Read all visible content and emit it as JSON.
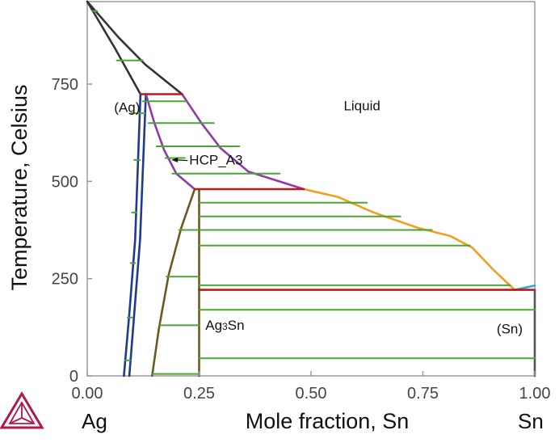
{
  "chart_data": {
    "type": "line",
    "title": "",
    "xlabel": "Mole fraction, Sn",
    "ylabel": "Temperature, Celsius",
    "xlim": [
      0,
      1
    ],
    "ylim": [
      0,
      962
    ],
    "x_ticks": [
      0,
      0.25,
      0.5,
      0.75,
      1
    ],
    "x_tick_labels": [
      "0.00",
      "0.25",
      "0.50",
      "0.75",
      "1.00"
    ],
    "y_ticks": [
      0,
      250,
      500,
      750
    ],
    "y_tick_labels": [
      "0",
      "250",
      "500",
      "750"
    ],
    "end_labels": {
      "left": "Ag",
      "right": "Sn"
    },
    "region_labels": [
      {
        "text": "(Ag)",
        "x": 0.06,
        "y": 678
      },
      {
        "text": "Liquid",
        "x": 0.573,
        "y": 683
      },
      {
        "text": "Ag",
        "sub": "3",
        "suffix": "Sn",
        "x": 0.264,
        "y": 118
      },
      {
        "text": "(Sn)",
        "x": 0.915,
        "y": 109
      }
    ],
    "annotations": [
      {
        "text": "HCP_A3",
        "x": 0.228,
        "y": 543,
        "arrow_to": [
          0.188,
          555
        ]
      }
    ],
    "series": [
      {
        "color": "#333333",
        "points": [
          [
            0,
            962
          ],
          [
            0.063,
            840
          ],
          [
            0.119,
            724
          ]
        ]
      },
      {
        "color": "#333333",
        "points": [
          [
            0,
            962
          ],
          [
            0.07,
            870
          ],
          [
            0.13,
            800
          ],
          [
            0.212,
            724
          ]
        ]
      },
      {
        "color": "#1f3a8f",
        "points": [
          [
            0.082,
            0
          ],
          [
            0.094,
            160
          ],
          [
            0.107,
            350
          ],
          [
            0.119,
            724
          ]
        ]
      },
      {
        "color": "#1f3a8f",
        "points": [
          [
            0.094,
            0
          ],
          [
            0.105,
            160
          ],
          [
            0.118,
            350
          ],
          [
            0.131,
            724
          ]
        ]
      },
      {
        "color": "#8e3aaa",
        "points": [
          [
            0.131,
            724
          ],
          [
            0.15,
            650
          ],
          [
            0.172,
            580
          ],
          [
            0.199,
            520
          ],
          [
            0.24,
            480
          ]
        ]
      },
      {
        "color": "#8e3aaa",
        "points": [
          [
            0.212,
            724
          ],
          [
            0.255,
            650
          ],
          [
            0.298,
            585
          ],
          [
            0.36,
            525
          ],
          [
            0.484,
            480
          ]
        ]
      },
      {
        "color": "#6b5a1f",
        "points": [
          [
            0.145,
            0
          ],
          [
            0.16,
            120
          ],
          [
            0.182,
            260
          ],
          [
            0.21,
            380
          ],
          [
            0.24,
            480
          ]
        ]
      },
      {
        "color": "#6b5a1f",
        "points": [
          [
            0.25,
            0
          ],
          [
            0.25,
            480
          ]
        ]
      },
      {
        "color": "#f0a020",
        "points": [
          [
            0.484,
            480
          ],
          [
            0.56,
            460
          ],
          [
            0.64,
            420
          ],
          [
            0.74,
            380
          ],
          [
            0.81,
            360
          ],
          [
            0.86,
            330
          ],
          [
            0.91,
            270
          ],
          [
            0.955,
            221
          ]
        ]
      },
      {
        "color": "#30a8d8",
        "points": [
          [
            0.955,
            221
          ],
          [
            1.0,
            232
          ]
        ]
      },
      {
        "color": "#c01818",
        "points": [
          [
            0.119,
            724
          ],
          [
            0.212,
            724
          ]
        ]
      },
      {
        "color": "#c01818",
        "points": [
          [
            0.24,
            480
          ],
          [
            0.484,
            480
          ]
        ]
      },
      {
        "color": "#c01818",
        "points": [
          [
            0.25,
            221
          ],
          [
            1.0,
            221
          ]
        ]
      },
      {
        "color": "#555555",
        "points": [
          [
            1.0,
            0
          ],
          [
            1.0,
            221
          ]
        ]
      },
      {
        "color": "#4aa532",
        "points": [
          [
            0.011,
            938
          ],
          [
            0.022,
            938
          ]
        ]
      },
      {
        "color": "#4aa532",
        "points": [
          [
            0.066,
            811
          ],
          [
            0.124,
            811
          ]
        ]
      },
      {
        "color": "#4aa532",
        "points": [
          [
            0.124,
            706
          ],
          [
            0.221,
            706
          ]
        ]
      },
      {
        "color": "#4aa532",
        "points": [
          [
            0.137,
            650
          ],
          [
            0.283,
            650
          ]
        ]
      },
      {
        "color": "#4aa532",
        "points": [
          [
            0.155,
            590
          ],
          [
            0.34,
            590
          ]
        ]
      },
      {
        "color": "#4aa532",
        "points": [
          [
            0.175,
            560
          ],
          [
            0.218,
            560
          ]
        ]
      },
      {
        "color": "#4aa532",
        "points": [
          [
            0.19,
            520
          ],
          [
            0.43,
            520
          ]
        ]
      },
      {
        "color": "#4aa532",
        "points": [
          [
            0.25,
            445
          ],
          [
            0.625,
            445
          ]
        ]
      },
      {
        "color": "#4aa532",
        "points": [
          [
            0.25,
            410
          ],
          [
            0.7,
            410
          ]
        ]
      },
      {
        "color": "#4aa532",
        "points": [
          [
            0.205,
            375
          ],
          [
            0.25,
            375
          ]
        ]
      },
      {
        "color": "#4aa532",
        "points": [
          [
            0.25,
            375
          ],
          [
            0.77,
            375
          ]
        ]
      },
      {
        "color": "#4aa532",
        "points": [
          [
            0.25,
            335
          ],
          [
            0.855,
            335
          ]
        ]
      },
      {
        "color": "#4aa532",
        "points": [
          [
            0.177,
            255
          ],
          [
            0.25,
            255
          ]
        ]
      },
      {
        "color": "#4aa532",
        "points": [
          [
            0.25,
            233
          ],
          [
            0.945,
            233
          ]
        ]
      },
      {
        "color": "#4aa532",
        "points": [
          [
            0.25,
            170
          ],
          [
            1.0,
            170
          ]
        ]
      },
      {
        "color": "#4aa532",
        "points": [
          [
            0.162,
            130
          ],
          [
            0.25,
            130
          ]
        ]
      },
      {
        "color": "#4aa532",
        "points": [
          [
            0.25,
            45
          ],
          [
            1.0,
            45
          ]
        ]
      },
      {
        "color": "#4aa532",
        "points": [
          [
            0.146,
            5
          ],
          [
            0.25,
            5
          ]
        ]
      },
      {
        "color": "#4aa532",
        "points": [
          [
            0.098,
            675
          ],
          [
            0.129,
            675
          ]
        ]
      },
      {
        "color": "#4aa532",
        "points": [
          [
            0.105,
            555
          ],
          [
            0.118,
            555
          ]
        ]
      },
      {
        "color": "#4aa532",
        "points": [
          [
            0.1,
            420
          ],
          [
            0.11,
            420
          ]
        ]
      },
      {
        "color": "#4aa532",
        "points": [
          [
            0.097,
            290
          ],
          [
            0.107,
            290
          ]
        ]
      },
      {
        "color": "#4aa532",
        "points": [
          [
            0.09,
            150
          ],
          [
            0.1,
            150
          ]
        ]
      },
      {
        "color": "#4aa532",
        "points": [
          [
            0.085,
            40
          ],
          [
            0.096,
            40
          ]
        ]
      }
    ]
  }
}
